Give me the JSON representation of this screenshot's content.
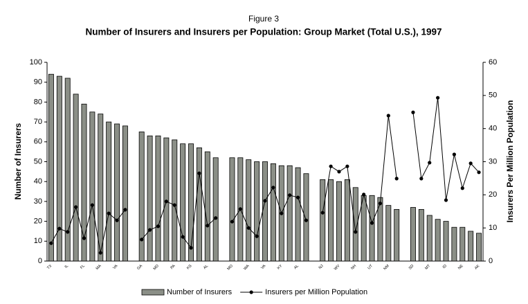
{
  "chart_data": {
    "type": "bar-line",
    "title": "Figure 3",
    "subtitle": "Number of Insurers and Insurers per Population: Group Market (Total U.S.), 1997",
    "y_label": "Number of Insurers",
    "y2_label": "Insurers Per Million Population",
    "categories": [
      "TX",
      null,
      "IL",
      null,
      "FL",
      null,
      "MA",
      null,
      "VA",
      null,
      null,
      "GA",
      null,
      "MD",
      null,
      "PA",
      null,
      "KS",
      null,
      "AL",
      null,
      null,
      "MO",
      null,
      "WA",
      null,
      "VA",
      null,
      "KY",
      null,
      "AL",
      null,
      null,
      "NJ",
      null,
      "WV",
      null,
      "NH",
      null,
      "UT",
      null,
      "NM",
      null,
      null,
      "SD",
      null,
      "MT",
      null,
      "ID",
      null,
      "NE",
      null,
      "AK"
    ],
    "series": [
      {
        "name": "Number of Insurers",
        "kind": "bar",
        "color": "#8b8f87",
        "values": [
          94,
          93,
          92,
          84,
          79,
          75,
          74,
          70,
          69,
          68,
          null,
          65,
          63,
          63,
          62,
          61,
          59,
          59,
          57,
          55,
          52,
          null,
          52,
          52,
          51,
          50,
          50,
          49,
          48,
          48,
          47,
          44,
          null,
          41,
          41,
          40,
          41,
          37,
          33,
          33,
          32,
          28,
          26,
          null,
          27,
          26,
          23,
          21,
          20,
          17,
          17,
          15,
          14
        ]
      },
      {
        "name": "Insurers per Million Population",
        "kind": "line",
        "axis": "y2",
        "color": "#000000",
        "values": [
          5.4,
          9.8,
          8.8,
          16.3,
          6.9,
          16.9,
          2.5,
          14.4,
          12.3,
          15.5,
          null,
          6.5,
          9.4,
          10.5,
          18,
          16.9,
          7.3,
          4,
          26.5,
          10.7,
          13,
          null,
          11.9,
          15.7,
          10,
          7.5,
          18.2,
          22.2,
          14.4,
          19.9,
          19.2,
          12.3,
          null,
          14.6,
          28.6,
          27,
          28.6,
          8.8,
          20.1,
          11.5,
          17.4,
          43.9,
          24.9,
          null,
          44.9,
          24.9,
          29.7,
          49.3,
          18.4,
          32.2,
          22,
          29.5,
          26.8
        ]
      }
    ],
    "ylim": [
      0,
      100
    ],
    "yticks": [
      0,
      10,
      20,
      30,
      40,
      50,
      60,
      70,
      80,
      90,
      100
    ],
    "y2lim": [
      0,
      60
    ],
    "y2ticks": [
      0,
      10,
      20,
      30,
      40,
      50,
      60
    ],
    "grid": false,
    "legend": "bottom"
  }
}
